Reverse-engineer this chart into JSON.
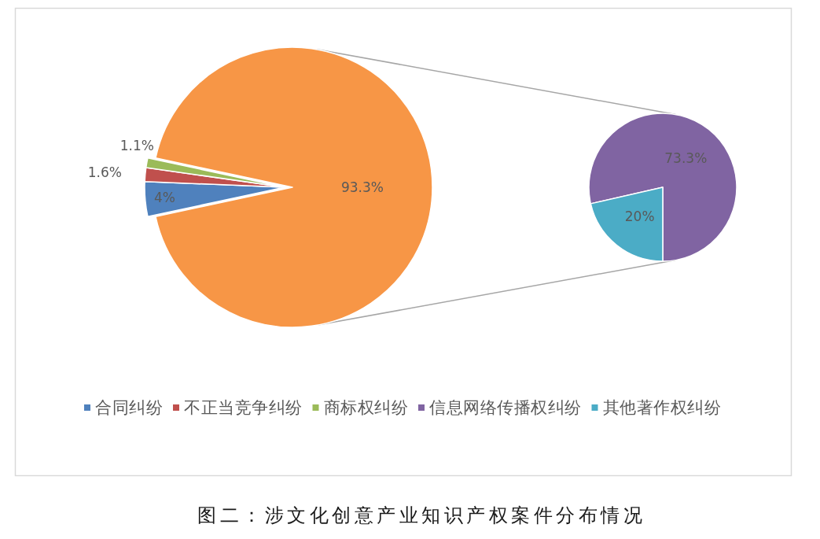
{
  "chart_data": [
    {
      "type": "pie",
      "title": "图二：涉文化创意产业知识产权案件分布情况",
      "categories": [
        "合同纠纷",
        "不正当竞争纠纷",
        "商标权纠纷",
        null
      ],
      "values": [
        4,
        1.6,
        1.1,
        93.3
      ],
      "colors": [
        "#4f81bd",
        "#c0504d",
        "#9bbb59",
        "#f79646"
      ],
      "value_labels": [
        "4%",
        "1.6%",
        "1.1%",
        "93.3%"
      ],
      "legend": "bottom"
    },
    {
      "type": "pie",
      "categories": [
        "信息网络传播权纠纷",
        "其他著作权纠纷"
      ],
      "values": [
        73.3,
        20
      ],
      "colors": [
        "#8064a2",
        "#4bacc6"
      ],
      "value_labels": [
        "73.3%",
        "20%"
      ],
      "legend": "bottom"
    }
  ]
}
